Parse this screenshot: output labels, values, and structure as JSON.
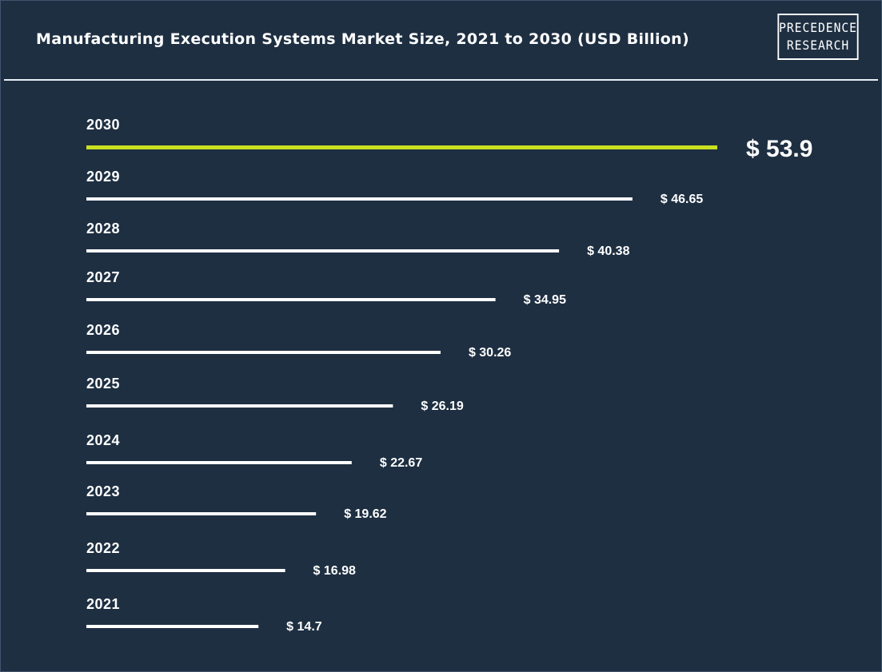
{
  "title": "Manufacturing Execution Systems Market Size, 2021 to 2030 (USD Billion)",
  "logo": {
    "line1": "PRECEDENCE",
    "line2": "RESEARCH"
  },
  "colors": {
    "background": "#1e2f42",
    "bar": "#ffffff",
    "highlight": "#c9e021",
    "text": "#ffffff"
  },
  "chart_data": {
    "type": "bar",
    "orientation": "horizontal",
    "title": "Manufacturing Execution Systems Market Size, 2021 to 2030 (USD Billion)",
    "categories": [
      "2030",
      "2029",
      "2028",
      "2027",
      "2026",
      "2025",
      "2024",
      "2023",
      "2022",
      "2021"
    ],
    "values": [
      53.9,
      46.65,
      40.38,
      34.95,
      30.26,
      26.19,
      22.67,
      19.62,
      16.98,
      14.7
    ],
    "value_labels": [
      "$ 53.9",
      "$ 46.65",
      "$ 40.38",
      "$ 34.95",
      "$ 30.26",
      "$ 26.19",
      "$ 22.67",
      "$ 19.62",
      "$ 16.98",
      "$ 14.7"
    ],
    "highlight_category": "2030",
    "xlabel": "",
    "ylabel": "",
    "grid": false,
    "legend": "none"
  }
}
